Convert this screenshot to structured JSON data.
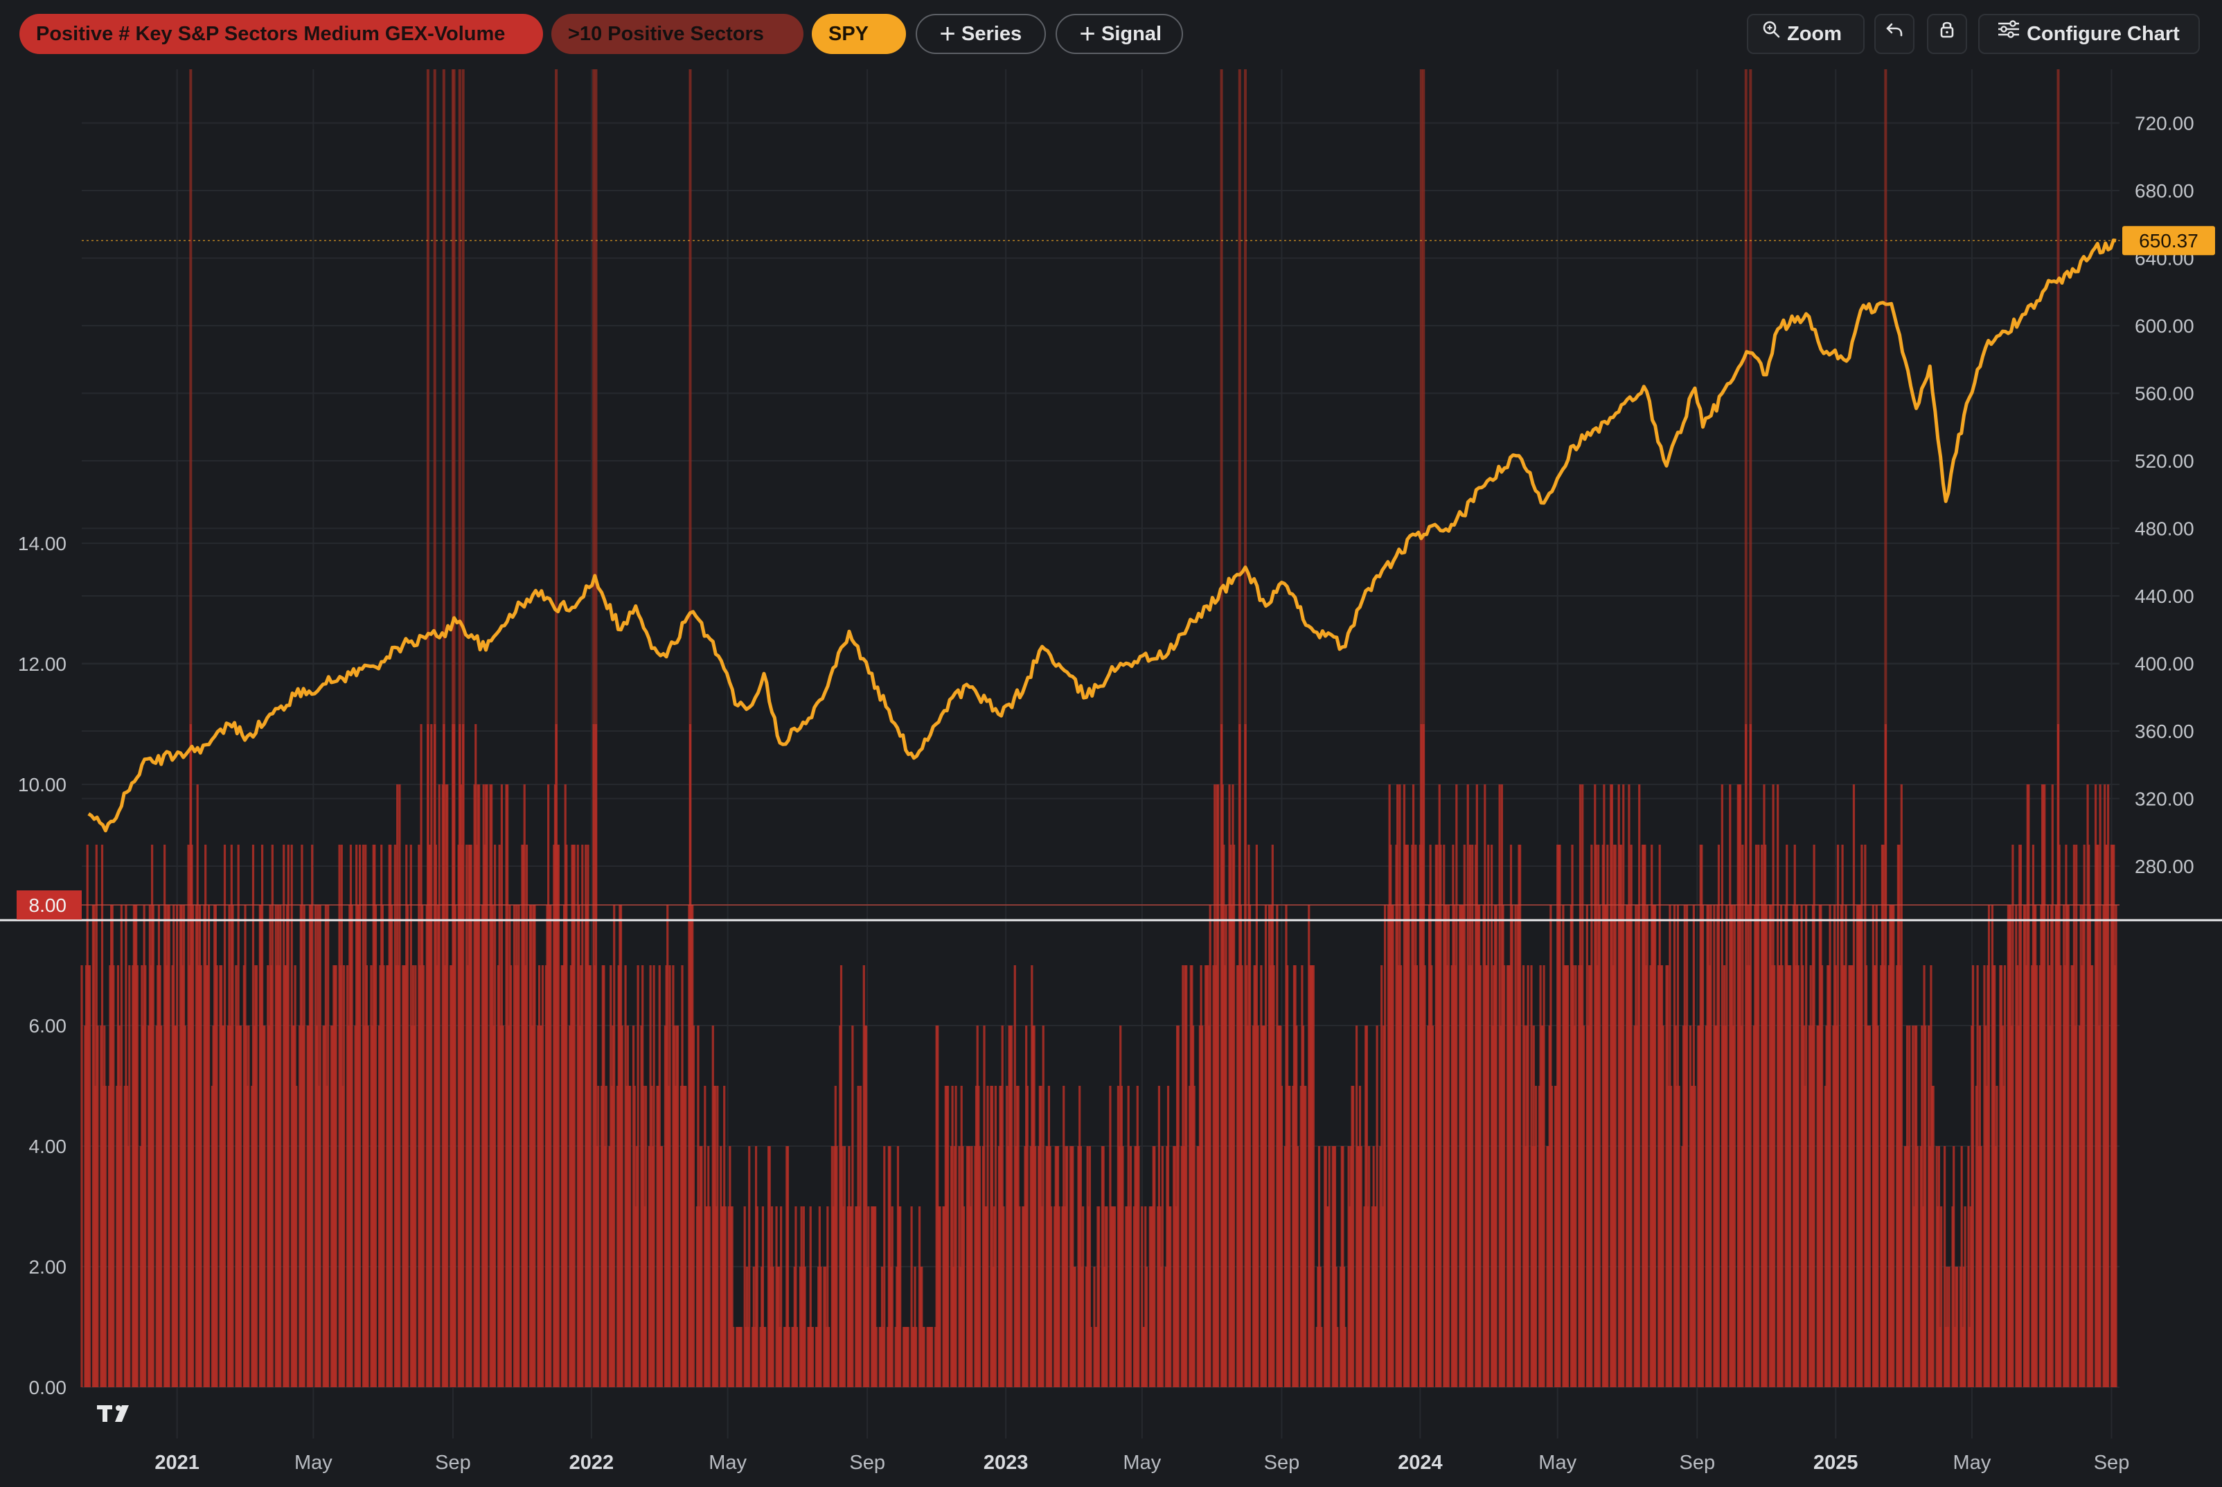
{
  "toolbar": {
    "signal_label": "Positive # Key S&P Sectors Medium GEX-Volume",
    "filter_label": ">10 Positive Sectors",
    "symbol_label": "SPY",
    "series_label": "Series",
    "add_signal_label": "Signal",
    "zoom_label": "Zoom",
    "configure_label": "Configure Chart",
    "icons": [
      "plus-icon",
      "zoom-icon",
      "undo-icon",
      "lock-icon",
      "sliders-icon"
    ]
  },
  "colors": {
    "background": "#1a1c20",
    "price_line": "#f5a623",
    "signal_bars": "#b52f27",
    "highlight_bands": "#8a2a22",
    "grid": "#26292e"
  },
  "chart_data": [
    {
      "type": "line",
      "series": [
        {
          "name": "SPY",
          "color": "#f5a623"
        }
      ],
      "x_ticks": [
        "2021",
        "May",
        "Sep",
        "2022",
        "May",
        "Sep",
        "2023",
        "May",
        "Sep",
        "2024",
        "May",
        "Sep",
        "2025",
        "May",
        "Sep"
      ],
      "y_ticks": [
        "280.00",
        "320.00",
        "360.00",
        "400.00",
        "440.00",
        "480.00",
        "520.00",
        "560.00",
        "600.00",
        "640.00",
        "680.00",
        "720.00"
      ],
      "ylim": [
        250,
        750
      ],
      "last_value_label": "650.37",
      "points": [
        [
          "2020-10-15",
          311
        ],
        [
          "2020-10-30",
          301
        ],
        [
          "2020-11-20",
          325
        ],
        [
          "2020-12-01",
          340
        ],
        [
          "2021-01-04",
          347
        ],
        [
          "2021-01-29",
          352
        ],
        [
          "2021-02-16",
          364
        ],
        [
          "2021-03-04",
          357
        ],
        [
          "2021-04-15",
          381
        ],
        [
          "2021-05-12",
          388
        ],
        [
          "2021-06-30",
          401
        ],
        [
          "2021-07-19",
          411
        ],
        [
          "2021-08-30",
          420
        ],
        [
          "2021-09-02",
          427
        ],
        [
          "2021-09-30",
          408
        ],
        [
          "2021-10-21",
          429
        ],
        [
          "2021-11-18",
          443
        ],
        [
          "2021-11-30",
          432
        ],
        [
          "2021-12-20",
          436
        ],
        [
          "2022-01-04",
          452
        ],
        [
          "2022-01-10",
          442
        ],
        [
          "2022-01-27",
          420
        ],
        [
          "2022-02-09",
          434
        ],
        [
          "2022-02-23",
          409
        ],
        [
          "2022-03-08",
          404
        ],
        [
          "2022-03-29",
          430
        ],
        [
          "2022-04-18",
          413
        ],
        [
          "2022-05-10",
          375
        ],
        [
          "2022-05-20",
          374
        ],
        [
          "2022-06-02",
          394
        ],
        [
          "2022-06-16",
          353
        ],
        [
          "2022-07-14",
          368
        ],
        [
          "2022-08-16",
          419
        ],
        [
          "2022-09-30",
          357
        ],
        [
          "2022-10-12",
          344
        ],
        [
          "2022-11-15",
          380
        ],
        [
          "2022-11-30",
          386
        ],
        [
          "2022-12-28",
          369
        ],
        [
          "2023-01-18",
          387
        ],
        [
          "2023-02-02",
          410
        ],
        [
          "2023-03-13",
          380
        ],
        [
          "2023-04-12",
          400
        ],
        [
          "2023-05-24",
          406
        ],
        [
          "2023-06-15",
          425
        ],
        [
          "2023-07-31",
          457
        ],
        [
          "2023-08-18",
          434
        ],
        [
          "2023-09-01",
          448
        ],
        [
          "2023-09-27",
          421
        ],
        [
          "2023-10-27",
          410
        ],
        [
          "2023-11-14",
          443
        ],
        [
          "2023-12-28",
          476
        ],
        [
          "2024-01-31",
          482
        ],
        [
          "2024-02-29",
          508
        ],
        [
          "2024-03-28",
          523
        ],
        [
          "2024-04-19",
          495
        ],
        [
          "2024-05-15",
          529
        ],
        [
          "2024-06-14",
          542
        ],
        [
          "2024-07-16",
          564
        ],
        [
          "2024-08-05",
          517
        ],
        [
          "2024-08-30",
          563
        ],
        [
          "2024-09-06",
          540
        ],
        [
          "2024-10-17",
          584
        ],
        [
          "2024-11-01",
          571
        ],
        [
          "2024-11-11",
          598
        ],
        [
          "2024-12-06",
          607
        ],
        [
          "2024-12-19",
          586
        ],
        [
          "2025-01-13",
          581
        ],
        [
          "2025-01-23",
          609
        ],
        [
          "2025-02-19",
          613
        ],
        [
          "2025-03-13",
          551
        ],
        [
          "2025-03-25",
          576
        ],
        [
          "2025-04-08",
          496
        ],
        [
          "2025-04-24",
          547
        ],
        [
          "2025-05-13",
          587
        ],
        [
          "2025-06-12",
          603
        ],
        [
          "2025-07-10",
          626
        ],
        [
          "2025-07-31",
          632
        ],
        [
          "2025-08-15",
          644
        ],
        [
          "2025-09-05",
          650.37
        ]
      ]
    },
    {
      "type": "bar",
      "series": [
        {
          "name": "Positive # Key S&P Sectors Medium GEX-Volume",
          "color": "#b52f27"
        }
      ],
      "y_ticks": [
        "0.00",
        "2.00",
        "4.00",
        "6.00",
        "8.00",
        "10.00",
        "12.00",
        "14.00"
      ],
      "ylim": [
        0,
        14.5
      ],
      "threshold_label": "8.00",
      "threshold": 8,
      "level_by_month": [
        [
          "2020-10",
          7
        ],
        [
          "2020-11",
          6.5
        ],
        [
          "2020-12",
          7.5
        ],
        [
          "2021-01",
          8
        ],
        [
          "2021-02",
          7.5
        ],
        [
          "2021-03",
          7
        ],
        [
          "2021-04",
          7.5
        ],
        [
          "2021-05",
          7
        ],
        [
          "2021-06",
          8
        ],
        [
          "2021-07",
          8.5
        ],
        [
          "2021-08",
          9
        ],
        [
          "2021-09",
          9
        ],
        [
          "2021-10",
          8.5
        ],
        [
          "2021-11",
          8
        ],
        [
          "2021-12",
          8.5
        ],
        [
          "2022-01",
          6
        ],
        [
          "2022-02",
          5
        ],
        [
          "2022-03",
          6.5
        ],
        [
          "2022-04",
          4.5
        ],
        [
          "2022-05",
          2.5
        ],
        [
          "2022-06",
          2
        ],
        [
          "2022-07",
          1.5
        ],
        [
          "2022-08",
          5
        ],
        [
          "2022-09",
          2.5
        ],
        [
          "2022-10",
          1
        ],
        [
          "2022-11",
          4.5
        ],
        [
          "2022-12",
          4.5
        ],
        [
          "2023-01",
          5
        ],
        [
          "2023-02",
          5
        ],
        [
          "2023-03",
          3
        ],
        [
          "2023-04",
          4.5
        ],
        [
          "2023-05",
          3.5
        ],
        [
          "2023-06",
          6
        ],
        [
          "2023-07",
          8.5
        ],
        [
          "2023-08",
          7.5
        ],
        [
          "2023-09",
          6
        ],
        [
          "2023-10",
          3
        ],
        [
          "2023-11",
          5
        ],
        [
          "2023-12",
          8.5
        ],
        [
          "2024-01",
          8
        ],
        [
          "2024-02",
          8.5
        ],
        [
          "2024-03",
          8
        ],
        [
          "2024-04",
          6
        ],
        [
          "2024-05",
          8.5
        ],
        [
          "2024-06",
          8.5
        ],
        [
          "2024-07",
          8
        ],
        [
          "2024-08",
          6.5
        ],
        [
          "2024-09",
          8
        ],
        [
          "2024-10",
          8.5
        ],
        [
          "2024-11",
          8.5
        ],
        [
          "2024-12",
          7
        ],
        [
          "2025-01",
          8
        ],
        [
          "2025-02",
          8.5
        ],
        [
          "2025-03",
          5
        ],
        [
          "2025-04",
          2.5
        ],
        [
          "2025-05",
          6
        ],
        [
          "2025-06",
          8
        ],
        [
          "2025-07",
          8.5
        ],
        [
          "2025-08",
          8.5
        ],
        [
          "2025-09",
          8.5
        ]
      ],
      "signal_events": [
        "2021-01-13",
        "2021-08-10",
        "2021-08-16",
        "2021-08-24",
        "2021-09-01",
        "2021-09-02",
        "2021-09-07",
        "2021-09-10",
        "2021-12-01",
        "2022-01-03",
        "2022-01-05",
        "2022-03-29",
        "2023-07-10",
        "2023-07-26",
        "2023-07-31",
        "2024-01-02",
        "2024-01-04",
        "2024-10-14",
        "2024-10-18",
        "2025-02-14",
        "2025-07-16"
      ]
    }
  ]
}
